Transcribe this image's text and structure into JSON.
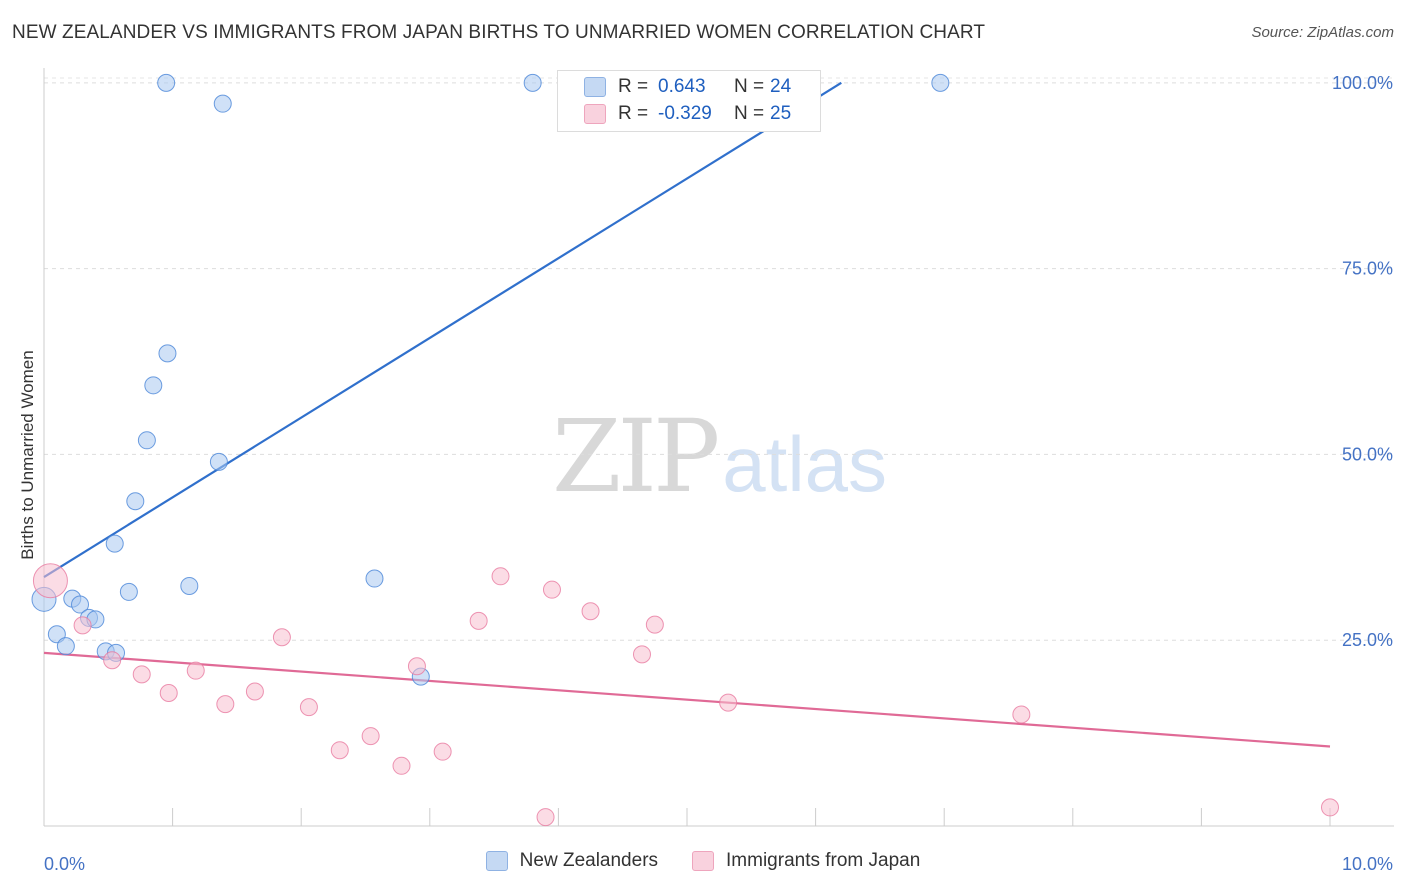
{
  "header": {
    "title": "NEW ZEALANDER VS IMMIGRANTS FROM JAPAN BIRTHS TO UNMARRIED WOMEN CORRELATION CHART",
    "source": "Source: ZipAtlas.com"
  },
  "watermark": {
    "zip": "ZIP",
    "atlas": "atlas"
  },
  "legend": {
    "rows": [
      {
        "r_label": "R =",
        "r_value": "0.643",
        "n_label": "N =",
        "n_value": "24",
        "color": "#aac8f0"
      },
      {
        "r_label": "R =",
        "r_value": "-0.329",
        "n_label": "N =",
        "n_value": "25",
        "color": "#f7bfd0"
      }
    ]
  },
  "bottom_legend": {
    "items": [
      {
        "label": "New Zealanders",
        "color": "#aac8f0"
      },
      {
        "label": "Immigrants from Japan",
        "color": "#f7bfd0"
      }
    ]
  },
  "chart_data": {
    "type": "scatter",
    "title": "NEW ZEALANDER VS IMMIGRANTS FROM JAPAN BIRTHS TO UNMARRIED WOMEN CORRELATION CHART",
    "xlabel": "",
    "ylabel": "Births to Unmarried Women",
    "xlim": [
      0,
      10
    ],
    "ylim": [
      0,
      102
    ],
    "x_tick_labels": [
      "0.0%",
      "10.0%"
    ],
    "y_ticks": [
      25,
      50,
      75,
      100
    ],
    "y_tick_labels": [
      "25.0%",
      "50.0%",
      "75.0%",
      "100.0%"
    ],
    "grid": true,
    "legend_position": "top-center",
    "series": [
      {
        "name": "New Zealanders",
        "color": "#4a86d8",
        "fill": "#aac8f0",
        "points": [
          [
            0.0,
            30.5
          ],
          [
            0.1,
            25.8
          ],
          [
            0.17,
            24.2
          ],
          [
            0.22,
            30.6
          ],
          [
            0.28,
            29.8
          ],
          [
            0.35,
            28.0
          ],
          [
            0.4,
            27.8
          ],
          [
            0.48,
            23.5
          ],
          [
            0.56,
            23.3
          ],
          [
            0.55,
            38.0
          ],
          [
            0.66,
            31.5
          ],
          [
            0.71,
            43.7
          ],
          [
            0.8,
            51.9
          ],
          [
            0.85,
            59.3
          ],
          [
            0.96,
            63.6
          ],
          [
            0.95,
            100.0
          ],
          [
            1.13,
            32.3
          ],
          [
            1.36,
            49.0
          ],
          [
            1.39,
            97.2
          ],
          [
            2.57,
            33.3
          ],
          [
            2.93,
            20.1
          ],
          [
            3.8,
            100.0
          ],
          [
            5.2,
            100.0
          ],
          [
            6.97,
            100.0
          ]
        ],
        "trend": {
          "x": [
            0.0,
            6.2
          ],
          "y": [
            33.5,
            100.0
          ],
          "color": "#3070cc"
        }
      },
      {
        "name": "Immigrants from Japan",
        "color": "#e87aa0",
        "fill": "#f7bfd0",
        "points": [
          [
            0.05,
            33.0
          ],
          [
            0.3,
            27.0
          ],
          [
            0.53,
            22.3
          ],
          [
            0.76,
            20.4
          ],
          [
            0.97,
            17.9
          ],
          [
            1.18,
            20.9
          ],
          [
            1.41,
            16.4
          ],
          [
            1.64,
            18.1
          ],
          [
            1.85,
            25.4
          ],
          [
            2.06,
            16.0
          ],
          [
            2.3,
            10.2
          ],
          [
            2.54,
            12.1
          ],
          [
            2.78,
            8.1
          ],
          [
            2.9,
            21.5
          ],
          [
            3.1,
            10.0
          ],
          [
            3.38,
            27.6
          ],
          [
            3.55,
            33.6
          ],
          [
            3.9,
            1.2
          ],
          [
            3.95,
            31.8
          ],
          [
            4.25,
            28.9
          ],
          [
            4.65,
            23.1
          ],
          [
            4.75,
            27.1
          ],
          [
            5.32,
            16.6
          ],
          [
            7.6,
            15.0
          ],
          [
            10.0,
            2.5
          ]
        ],
        "trend": {
          "x": [
            0.0,
            10.0
          ],
          "y": [
            23.3,
            10.7
          ],
          "color": "#e06a96"
        }
      }
    ]
  }
}
